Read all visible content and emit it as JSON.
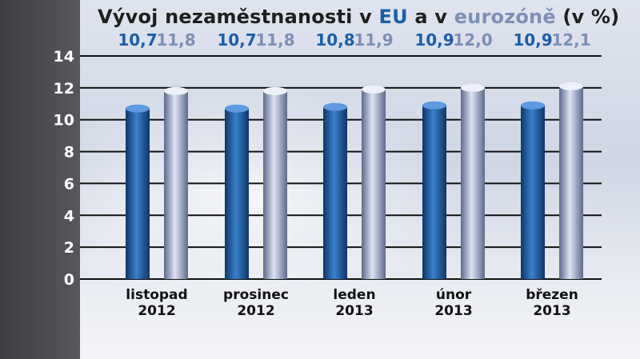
{
  "title": {
    "prefix": "Vývoj nezaměstnanosti v ",
    "eu": "EU",
    "middle": " a v ",
    "eurozone": "eurozóně",
    "suffix": " (v %)"
  },
  "colors": {
    "eu_bar": "#1d5fa8",
    "eurozone_bar": "#a4b0d0",
    "eu_text": "#1d5fa8",
    "eurozone_text": "#7d8fb3"
  },
  "chart_data": {
    "type": "bar",
    "title": "Vývoj nezaměstnanosti v EU a v eurozóně (v %)",
    "categories": [
      [
        "listopad",
        "2012"
      ],
      [
        "prosinec",
        "2012"
      ],
      [
        "leden",
        "2013"
      ],
      [
        "únor",
        "2013"
      ],
      [
        "březen",
        "2013"
      ]
    ],
    "series": [
      {
        "name": "EU",
        "values": [
          10.7,
          10.7,
          10.8,
          10.9,
          10.9
        ],
        "labels": [
          "10,7",
          "10,7",
          "10,8",
          "10,9",
          "10,9"
        ]
      },
      {
        "name": "eurozóně",
        "values": [
          11.8,
          11.8,
          11.9,
          12.0,
          12.1
        ],
        "labels": [
          "11,8",
          "11,8",
          "11,9",
          "12,0",
          "12,1"
        ]
      }
    ],
    "ylim": [
      0,
      14
    ],
    "yticks": [
      0,
      2,
      4,
      6,
      8,
      10,
      12,
      14
    ],
    "grid": true,
    "xlabel": "",
    "ylabel": ""
  }
}
